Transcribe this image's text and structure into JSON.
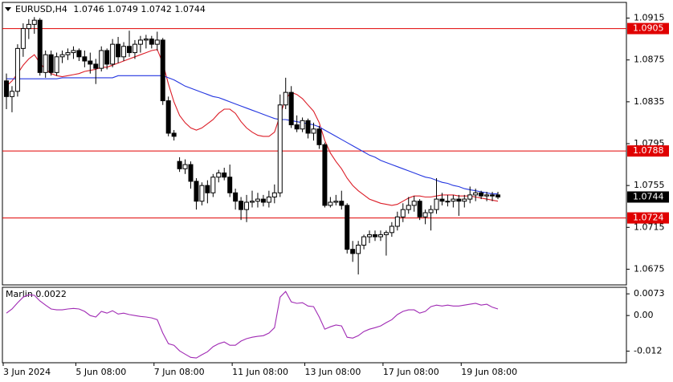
{
  "chart_data": {
    "type": "candlestick",
    "symbol": "EURUSD,H4",
    "ylim": [
      1.066,
      1.093
    ],
    "yticks": [
      1.0915,
      1.0875,
      1.0835,
      1.0795,
      1.0755,
      1.0715,
      1.0675
    ],
    "levels": [
      {
        "value": 1.0905,
        "color": "#e00000"
      },
      {
        "value": 1.0788,
        "color": "#e00000"
      },
      {
        "value": 1.0724,
        "color": "#e00000"
      }
    ],
    "categories": [
      "3 Jun 2024",
      null,
      null,
      null,
      null,
      null,
      null,
      null,
      null,
      null,
      null,
      null,
      null,
      "5 Jun 08:00",
      null,
      null,
      null,
      null,
      null,
      null,
      null,
      null,
      null,
      null,
      null,
      null,
      null,
      "7 Jun 08:00",
      null,
      null,
      null,
      null,
      null,
      null,
      null,
      null,
      null,
      null,
      null,
      null,
      null,
      "11 Jun 08:00",
      null,
      null,
      null,
      null,
      null,
      null,
      null,
      null,
      null,
      null,
      null,
      null,
      "13 Jun 08:00",
      null,
      null,
      null,
      null,
      null,
      null,
      null,
      null,
      null,
      null,
      null,
      null,
      null,
      "17 Jun 08:00",
      null,
      null,
      null,
      null,
      null,
      null,
      null,
      null,
      null,
      null,
      null,
      null,
      null,
      "19 Jun 08:00",
      null,
      null,
      null,
      null,
      null,
      null
    ],
    "candles": [
      [
        1.0855,
        1.0862,
        1.0828,
        1.084
      ],
      [
        1.084,
        1.085,
        1.0825,
        1.0845
      ],
      [
        1.0845,
        1.089,
        1.084,
        1.0886
      ],
      [
        1.0886,
        1.091,
        1.0878,
        1.0905
      ],
      [
        1.0905,
        1.0914,
        1.0895,
        1.0909
      ],
      [
        1.0909,
        1.0916,
        1.09,
        1.0913
      ],
      [
        1.0913,
        1.0915,
        1.086,
        1.0863
      ],
      [
        1.0863,
        1.0884,
        1.0858,
        1.088
      ],
      [
        1.088,
        1.0884,
        1.086,
        1.0863
      ],
      [
        1.0863,
        1.0882,
        1.086,
        1.0878
      ],
      [
        1.0878,
        1.0884,
        1.0872,
        1.088
      ],
      [
        1.088,
        1.0886,
        1.0875,
        1.0882
      ],
      [
        1.0882,
        1.0888,
        1.0876,
        1.0884
      ],
      [
        1.0884,
        1.0886,
        1.0874,
        1.0878
      ],
      [
        1.0878,
        1.0884,
        1.0868,
        1.0874
      ],
      [
        1.0874,
        1.0882,
        1.0862,
        1.0871
      ],
      [
        1.0871,
        1.0876,
        1.0852,
        1.0867
      ],
      [
        1.0867,
        1.0888,
        1.0864,
        1.0884
      ],
      [
        1.0884,
        1.0886,
        1.0866,
        1.0871
      ],
      [
        1.0871,
        1.0895,
        1.0868,
        1.089
      ],
      [
        1.089,
        1.0897,
        1.0872,
        1.0878
      ],
      [
        1.0878,
        1.0892,
        1.0874,
        1.0888
      ],
      [
        1.0888,
        1.0903,
        1.0878,
        1.0882
      ],
      [
        1.0882,
        1.0894,
        1.0876,
        1.089
      ],
      [
        1.089,
        1.0898,
        1.0882,
        1.0894
      ],
      [
        1.0894,
        1.0899,
        1.0886,
        1.0895
      ],
      [
        1.0895,
        1.0898,
        1.0886,
        1.089
      ],
      [
        1.089,
        1.0902,
        1.0884,
        1.0894
      ],
      [
        1.0894,
        1.0896,
        1.0832,
        1.0836
      ],
      [
        1.0836,
        1.084,
        1.0802,
        1.0805
      ],
      [
        1.0805,
        1.0808,
        1.0798,
        1.0802
      ],
      [
        1.0778,
        1.0782,
        1.0768,
        1.0771
      ],
      [
        1.0771,
        1.078,
        1.0766,
        1.0775
      ],
      [
        1.0775,
        1.0778,
        1.0752,
        1.0759
      ],
      [
        1.0759,
        1.0762,
        1.0732,
        1.074
      ],
      [
        1.074,
        1.0758,
        1.0736,
        1.0755
      ],
      [
        1.0755,
        1.076,
        1.0738,
        1.0748
      ],
      [
        1.0748,
        1.0766,
        1.0744,
        1.0763
      ],
      [
        1.0763,
        1.077,
        1.0758,
        1.0767
      ],
      [
        1.0767,
        1.0772,
        1.076,
        1.0763
      ],
      [
        1.0763,
        1.0775,
        1.0744,
        1.0748
      ],
      [
        1.0748,
        1.0752,
        1.0732,
        1.074
      ],
      [
        1.074,
        1.0744,
        1.0722,
        1.0732
      ],
      [
        1.0732,
        1.0746,
        1.072,
        1.0739
      ],
      [
        1.0739,
        1.075,
        1.0734,
        1.074
      ],
      [
        1.074,
        1.0748,
        1.0734,
        1.0742
      ],
      [
        1.0742,
        1.0746,
        1.0735,
        1.0739
      ],
      [
        1.0739,
        1.075,
        1.0734,
        1.0744
      ],
      [
        1.0744,
        1.0756,
        1.0738,
        1.0748
      ],
      [
        1.0748,
        1.0842,
        1.0744,
        1.0832
      ],
      [
        1.0832,
        1.0858,
        1.0828,
        1.0844
      ],
      [
        1.0844,
        1.085,
        1.081,
        1.0813
      ],
      [
        1.0813,
        1.0822,
        1.0806,
        1.0809
      ],
      [
        1.0809,
        1.082,
        1.0806,
        1.0817
      ],
      [
        1.0817,
        1.0819,
        1.08,
        1.0805
      ],
      [
        1.0805,
        1.0815,
        1.0798,
        1.0809
      ],
      [
        1.0809,
        1.0812,
        1.079,
        1.0794
      ],
      [
        1.0794,
        1.0796,
        1.0734,
        1.0736
      ],
      [
        1.0736,
        1.0744,
        1.0734,
        1.0739
      ],
      [
        1.0739,
        1.0746,
        1.0736,
        1.074
      ],
      [
        1.074,
        1.075,
        1.0732,
        1.0736
      ],
      [
        1.0736,
        1.0738,
        1.069,
        1.0694
      ],
      [
        1.0694,
        1.0702,
        1.0682,
        1.069
      ],
      [
        1.069,
        1.0702,
        1.067,
        1.0698
      ],
      [
        1.0698,
        1.0708,
        1.0694,
        1.0706
      ],
      [
        1.0706,
        1.0712,
        1.07,
        1.0708
      ],
      [
        1.0708,
        1.0712,
        1.0702,
        1.0706
      ],
      [
        1.0706,
        1.0712,
        1.0702,
        1.0708
      ],
      [
        1.0708,
        1.0712,
        1.0688,
        1.071
      ],
      [
        1.071,
        1.072,
        1.0706,
        1.0716
      ],
      [
        1.0716,
        1.073,
        1.0712,
        1.0725
      ],
      [
        1.0725,
        1.0738,
        1.072,
        1.0732
      ],
      [
        1.0732,
        1.0744,
        1.0728,
        1.0736
      ],
      [
        1.0736,
        1.0745,
        1.073,
        1.074
      ],
      [
        1.074,
        1.0742,
        1.0722,
        1.0725
      ],
      [
        1.0725,
        1.0732,
        1.0718,
        1.0729
      ],
      [
        1.0729,
        1.0736,
        1.0712,
        1.0732
      ],
      [
        1.0732,
        1.0762,
        1.0728,
        1.0742
      ],
      [
        1.0742,
        1.0748,
        1.0736,
        1.074
      ],
      [
        1.074,
        1.0746,
        1.0735,
        1.074
      ],
      [
        1.074,
        1.0746,
        1.0734,
        1.0742
      ],
      [
        1.0742,
        1.0746,
        1.0726,
        1.074
      ],
      [
        1.074,
        1.0746,
        1.0734,
        1.0742
      ],
      [
        1.0742,
        1.0754,
        1.0738,
        1.0746
      ],
      [
        1.0746,
        1.0752,
        1.074,
        1.0748
      ],
      [
        1.0748,
        1.075,
        1.0742,
        1.0745
      ],
      [
        1.0745,
        1.0749,
        1.074,
        1.0746
      ],
      [
        1.0746,
        1.0749,
        1.074,
        1.0745
      ],
      [
        1.0746,
        1.0749,
        1.0742,
        1.0744
      ]
    ],
    "series": [
      {
        "color": "#dc1e28",
        "values": [
          1.085,
          1.0855,
          1.0862,
          1.087,
          1.0876,
          1.088,
          1.0872,
          1.0866,
          1.0862,
          1.086,
          1.0859,
          1.086,
          1.0861,
          1.0862,
          1.0864,
          1.0865,
          1.0866,
          1.0868,
          1.0868,
          1.087,
          1.0872,
          1.0874,
          1.0876,
          1.0878,
          1.088,
          1.0882,
          1.0884,
          1.0885,
          1.0872,
          1.0852,
          1.0835,
          1.0822,
          1.0815,
          1.081,
          1.0808,
          1.081,
          1.0814,
          1.0818,
          1.0824,
          1.0828,
          1.0828,
          1.0824,
          1.0816,
          1.081,
          1.0806,
          1.0803,
          1.0802,
          1.0802,
          1.0806,
          1.0822,
          1.0838,
          1.0844,
          1.0842,
          1.0838,
          1.0832,
          1.0826,
          1.0815,
          1.0798,
          1.0786,
          1.0778,
          1.0771,
          1.0762,
          1.0755,
          1.075,
          1.0746,
          1.0742,
          1.074,
          1.0738,
          1.0737,
          1.0736,
          1.0737,
          1.074,
          1.0743,
          1.0745,
          1.0745,
          1.0744,
          1.0744,
          1.0745,
          1.0746,
          1.0746,
          1.0746,
          1.0745,
          1.0745,
          1.0745,
          1.0744,
          1.0743,
          1.0742,
          1.0741,
          1.074
        ]
      },
      {
        "color": "#2436e0",
        "values": [
          1.0857,
          1.0857,
          1.0857,
          1.0857,
          1.0857,
          1.0857,
          1.0857,
          1.0857,
          1.0857,
          1.0857,
          1.0858,
          1.0858,
          1.0858,
          1.0858,
          1.0858,
          1.0858,
          1.0858,
          1.0858,
          1.0858,
          1.0858,
          1.086,
          1.086,
          1.086,
          1.086,
          1.086,
          1.086,
          1.086,
          1.086,
          1.086,
          1.0858,
          1.0856,
          1.0853,
          1.085,
          1.0848,
          1.0846,
          1.0844,
          1.0842,
          1.084,
          1.0839,
          1.0837,
          1.0835,
          1.0833,
          1.0831,
          1.0829,
          1.0827,
          1.0825,
          1.0823,
          1.0821,
          1.0819,
          1.0818,
          1.0818,
          1.0817,
          1.0816,
          1.0815,
          1.0814,
          1.0813,
          1.0811,
          1.0808,
          1.0805,
          1.0802,
          1.0799,
          1.0796,
          1.0793,
          1.079,
          1.0787,
          1.0784,
          1.0782,
          1.0779,
          1.0777,
          1.0775,
          1.0773,
          1.0771,
          1.0769,
          1.0767,
          1.0765,
          1.0763,
          1.0762,
          1.076,
          1.0758,
          1.0757,
          1.0755,
          1.0754,
          1.0752,
          1.0751,
          1.075,
          1.0749,
          1.0748,
          1.0747,
          1.0747
        ]
      }
    ],
    "indicator": {
      "name": "Marlin",
      "color": "#a02ab4",
      "ylim": [
        -0.0159,
        0.0095
      ],
      "yticks": [
        0.0073,
        {
          "value": 0,
          "label": "0.00"
        },
        -0.012
      ],
      "values": [
        0.0008,
        0.0022,
        0.0043,
        0.0062,
        0.007,
        0.0068,
        0.0049,
        0.0035,
        0.0022,
        0.0019,
        0.0019,
        0.0022,
        0.0024,
        0.0022,
        0.0014,
        0.0,
        -0.0005,
        0.0014,
        0.0008,
        0.0016,
        0.0005,
        0.0008,
        0.0003,
        0.0,
        -0.0003,
        -0.0005,
        -0.0008,
        -0.0014,
        -0.0059,
        -0.0095,
        -0.01,
        -0.0119,
        -0.013,
        -0.0141,
        -0.0143,
        -0.0132,
        -0.0122,
        -0.0105,
        -0.0095,
        -0.0089,
        -0.01,
        -0.01,
        -0.0086,
        -0.0078,
        -0.0073,
        -0.007,
        -0.0068,
        -0.0059,
        -0.0041,
        0.0062,
        0.0081,
        0.0046,
        0.0041,
        0.0043,
        0.0032,
        0.003,
        -0.0005,
        -0.0046,
        -0.0038,
        -0.0032,
        -0.0035,
        -0.0073,
        -0.0076,
        -0.0068,
        -0.0054,
        -0.0046,
        -0.0041,
        -0.0035,
        -0.0024,
        -0.0014,
        0.0003,
        0.0014,
        0.0019,
        0.0019,
        0.0008,
        0.0014,
        0.003,
        0.0035,
        0.0032,
        0.0035,
        0.0032,
        0.0032,
        0.0035,
        0.0038,
        0.0041,
        0.0035,
        0.0038,
        0.0028,
        0.0022
      ]
    }
  }
}
